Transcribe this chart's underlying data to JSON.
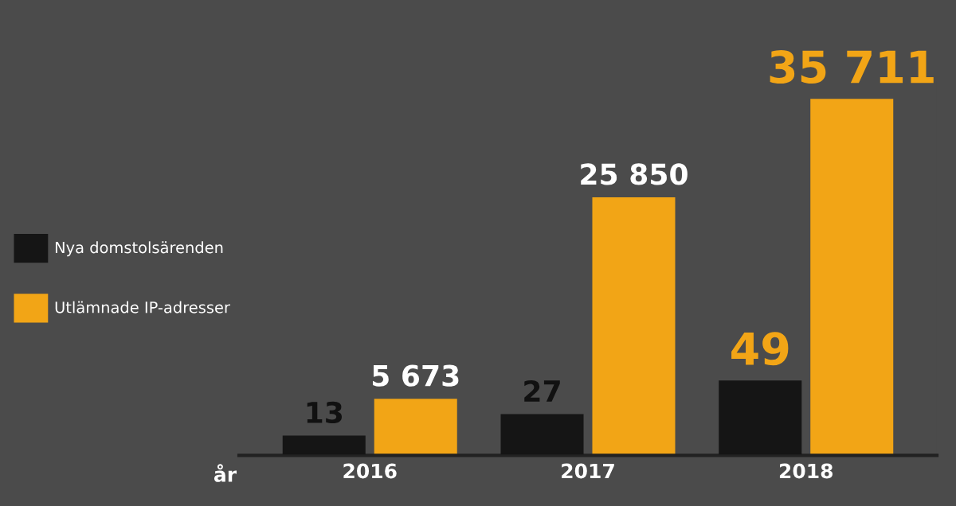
{
  "chart_data": {
    "type": "bar",
    "xlabel": "år",
    "categories": [
      "2016",
      "2017",
      "2018"
    ],
    "series": [
      {
        "name": "Nya domstolsärenden",
        "color": "#151515",
        "axis": "y2",
        "values": [
          13,
          27,
          49
        ],
        "value_labels": [
          "13",
          "27",
          "49"
        ]
      },
      {
        "name": "Utlämnade IP-adresser",
        "color": "#f2a516",
        "values": [
          5673,
          25850,
          35711
        ],
        "value_labels": [
          "5 673",
          "25 850",
          "35 711"
        ]
      }
    ],
    "tick_labels": false,
    "grid": false,
    "legend": "left"
  }
}
